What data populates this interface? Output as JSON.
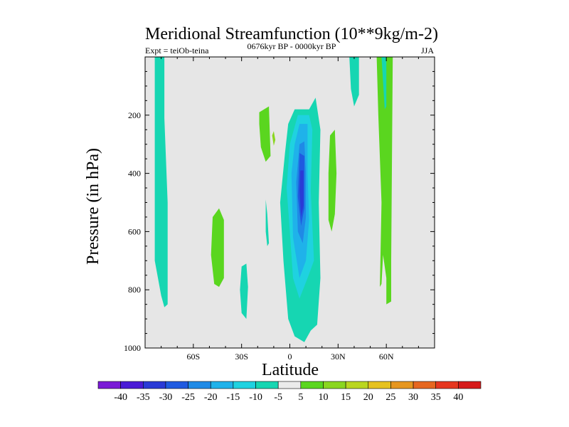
{
  "chart_data": {
    "type": "contour",
    "title": "Meridional Streamfunction (10**9kg/m-2)",
    "subtitle_left": "Expt = teiOb-teina",
    "subtitle_center": "0676kyr BP - 0000kyr BP",
    "subtitle_right": "JJA",
    "xlabel": "Latitude",
    "ylabel": "Pressure (in hPa)",
    "xlim": [
      -90,
      90
    ],
    "ylim": [
      1000,
      0
    ],
    "x_ticks": [
      {
        "value": -60,
        "label": "60S"
      },
      {
        "value": -30,
        "label": "30S"
      },
      {
        "value": 0,
        "label": "0"
      },
      {
        "value": 30,
        "label": "30N"
      },
      {
        "value": 60,
        "label": "60N"
      }
    ],
    "y_ticks": [
      {
        "value": 200,
        "label": "200"
      },
      {
        "value": 400,
        "label": "400"
      },
      {
        "value": 600,
        "label": "600"
      },
      {
        "value": 800,
        "label": "800"
      },
      {
        "value": 1000,
        "label": "1000"
      }
    ],
    "colorbar": {
      "labels": [
        "-40",
        "-35",
        "-30",
        "-25",
        "-20",
        "-15",
        "-10",
        "-5",
        "5",
        "10",
        "15",
        "20",
        "25",
        "30",
        "35",
        "40"
      ],
      "colors": [
        "#7a1ad6",
        "#4a1ad6",
        "#2a3ad6",
        "#1f5ae0",
        "#1f8ae6",
        "#1fb2ea",
        "#1fd2e0",
        "#16d6b2",
        "#ebebeb",
        "#5ad61f",
        "#8ad61f",
        "#bad61f",
        "#e6c21f",
        "#e6961f",
        "#e6661f",
        "#e6361f",
        "#d61a1a"
      ]
    },
    "regions": [
      {
        "name": "sh-high-lat-band",
        "level": -5,
        "points": [
          [
            -84,
            0
          ],
          [
            -78,
            0
          ],
          [
            -78,
            210
          ],
          [
            -76,
            500
          ],
          [
            -76,
            850
          ],
          [
            -78,
            860
          ],
          [
            -80,
            820
          ],
          [
            -84,
            700
          ]
        ]
      },
      {
        "name": "sh-midlat-positive",
        "level": 5,
        "points": [
          [
            -48,
            550
          ],
          [
            -44,
            520
          ],
          [
            -41,
            560
          ],
          [
            -41,
            760
          ],
          [
            -44,
            790
          ],
          [
            -47,
            780
          ],
          [
            -49,
            680
          ]
        ]
      },
      {
        "name": "sh-subtropical-small",
        "level": -5,
        "points": [
          [
            -30,
            720
          ],
          [
            -27,
            710
          ],
          [
            -26,
            790
          ],
          [
            -27,
            900
          ],
          [
            -30,
            880
          ],
          [
            -31,
            800
          ]
        ]
      },
      {
        "name": "sh-thin-sliver",
        "level": -5,
        "points": [
          [
            -15,
            490
          ],
          [
            -14,
            540
          ],
          [
            -13,
            640
          ],
          [
            -14,
            650
          ],
          [
            -15,
            600
          ]
        ]
      },
      {
        "name": "tropical-upper-positive",
        "level": 5,
        "points": [
          [
            -19,
            190
          ],
          [
            -13,
            170
          ],
          [
            -12,
            340
          ],
          [
            -15,
            360
          ],
          [
            -18,
            310
          ],
          [
            -19,
            230
          ]
        ]
      },
      {
        "name": "tropical-positive-spot",
        "level": 10,
        "points": [
          [
            -11,
            270
          ],
          [
            -10,
            255
          ],
          [
            -9,
            285
          ],
          [
            -10,
            305
          ]
        ]
      },
      {
        "name": "hadley-cell-outer",
        "level": -5,
        "points": [
          [
            3,
            180
          ],
          [
            12,
            180
          ],
          [
            16,
            140
          ],
          [
            19,
            250
          ],
          [
            18,
            500
          ],
          [
            19,
            760
          ],
          [
            17,
            920
          ],
          [
            13,
            940
          ],
          [
            9,
            980
          ],
          [
            3,
            960
          ],
          [
            -1,
            900
          ],
          [
            -4,
            700
          ],
          [
            -6,
            500
          ],
          [
            -3,
            330
          ],
          [
            -1,
            230
          ]
        ]
      },
      {
        "name": "hadley-cell-level2",
        "level": -10,
        "points": [
          [
            5,
            200
          ],
          [
            12,
            200
          ],
          [
            14,
            250
          ],
          [
            13,
            460
          ],
          [
            15,
            700
          ],
          [
            11,
            760
          ],
          [
            6,
            830
          ],
          [
            2,
            760
          ],
          [
            0,
            600
          ],
          [
            -2,
            450
          ],
          [
            0,
            300
          ]
        ]
      },
      {
        "name": "hadley-cell-level3",
        "level": -15,
        "points": [
          [
            6,
            230
          ],
          [
            11,
            230
          ],
          [
            11,
            400
          ],
          [
            12,
            560
          ],
          [
            10,
            700
          ],
          [
            6,
            760
          ],
          [
            2,
            620
          ],
          [
            1,
            400
          ],
          [
            3,
            300
          ]
        ]
      },
      {
        "name": "hadley-cell-level4",
        "level": -20,
        "points": [
          [
            6,
            300
          ],
          [
            9,
            290
          ],
          [
            10,
            400
          ],
          [
            10,
            550
          ],
          [
            8,
            640
          ],
          [
            5,
            600
          ],
          [
            4,
            430
          ]
        ]
      },
      {
        "name": "hadley-cell-level5",
        "level": -25,
        "points": [
          [
            6,
            330
          ],
          [
            9,
            340
          ],
          [
            9,
            520
          ],
          [
            7,
            580
          ],
          [
            5,
            480
          ]
        ]
      },
      {
        "name": "hadley-cell-core",
        "level": -30,
        "points": [
          [
            6.5,
            390
          ],
          [
            8.5,
            390
          ],
          [
            8.5,
            510
          ],
          [
            7,
            550
          ],
          [
            6,
            460
          ]
        ]
      },
      {
        "name": "nh-subtropical-positive",
        "level": 5,
        "points": [
          [
            25,
            270
          ],
          [
            28,
            250
          ],
          [
            29,
            400
          ],
          [
            28,
            540
          ],
          [
            26,
            600
          ],
          [
            24,
            560
          ],
          [
            24,
            400
          ]
        ]
      },
      {
        "name": "nh-midlat-band",
        "level": -5,
        "points": [
          [
            37,
            0
          ],
          [
            43,
            0
          ],
          [
            43,
            130
          ],
          [
            40,
            170
          ],
          [
            38,
            110
          ]
        ]
      },
      {
        "name": "nh-high-lat-positive",
        "level": 5,
        "points": [
          [
            54,
            0
          ],
          [
            64,
            0
          ],
          [
            63,
            700
          ],
          [
            63,
            840
          ],
          [
            60,
            850
          ],
          [
            60,
            760
          ],
          [
            58,
            680
          ],
          [
            57,
            780
          ],
          [
            56,
            790
          ],
          [
            57,
            500
          ],
          [
            55,
            200
          ]
        ]
      },
      {
        "name": "nh-high-lat-core",
        "level": -5,
        "points": [
          [
            57,
            0
          ],
          [
            60,
            0
          ],
          [
            60,
            170
          ],
          [
            59,
            180
          ]
        ]
      }
    ]
  }
}
